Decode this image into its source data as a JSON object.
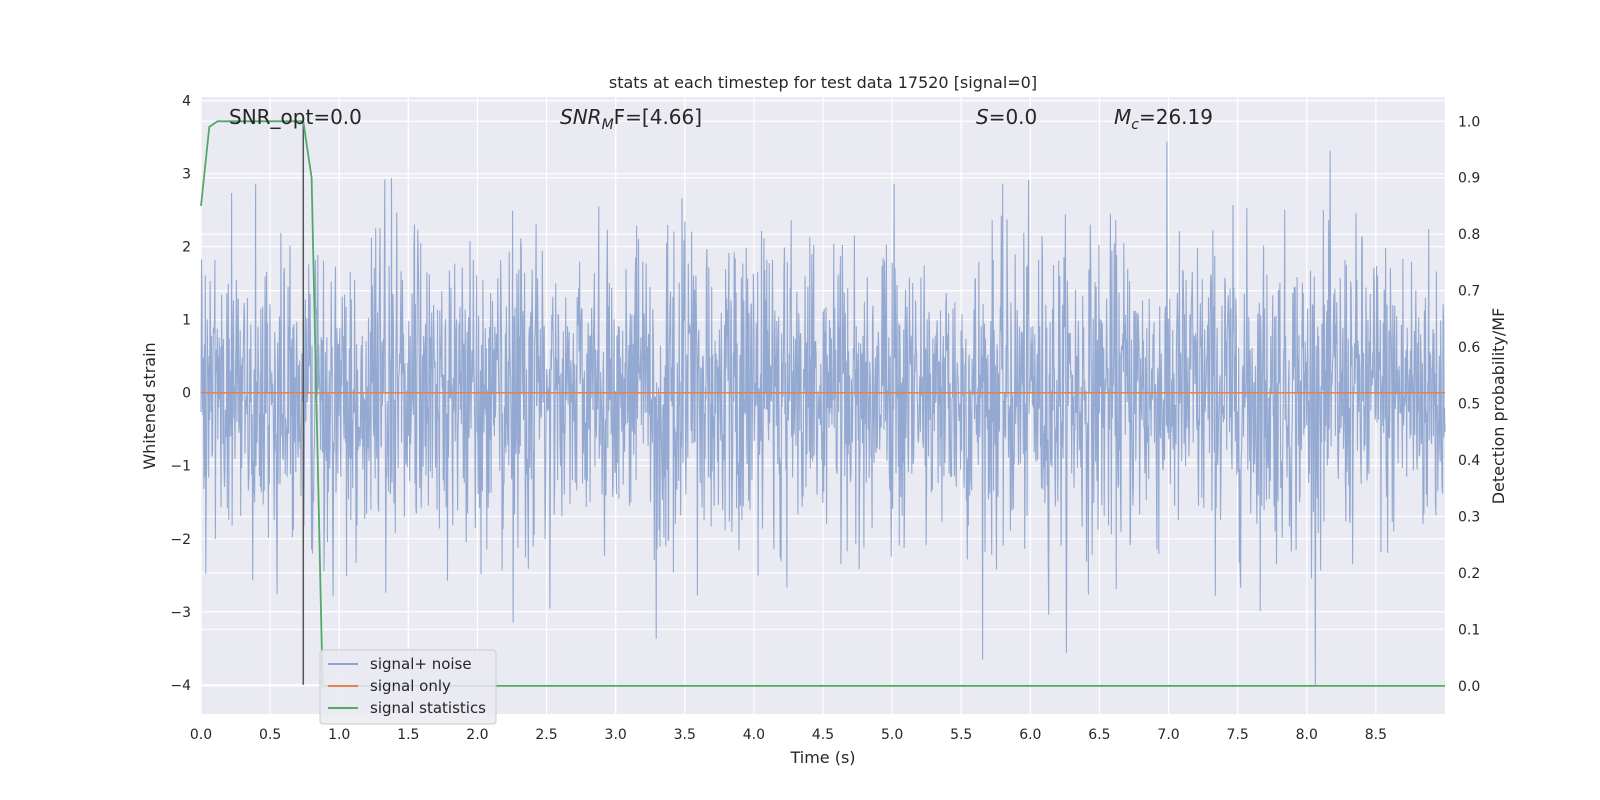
{
  "chart_data": {
    "type": "line",
    "title": "stats at each timestep for test data 17520 [signal=0]",
    "xlabel": "Time (s)",
    "ylabel": "Whitened strain",
    "ylabel_right": "Detection probability/MF",
    "xlim": [
      0.0,
      9.0
    ],
    "ylim": [
      -4.4,
      4.05
    ],
    "ylim_right": [
      -0.05,
      1.043
    ],
    "x_ticks": [
      "0.0",
      "0.5",
      "1.0",
      "1.5",
      "2.0",
      "2.5",
      "3.0",
      "3.5",
      "4.0",
      "4.5",
      "5.0",
      "5.5",
      "6.0",
      "6.5",
      "7.0",
      "7.5",
      "8.0",
      "8.5"
    ],
    "x_tick_values": [
      0.0,
      0.5,
      1.0,
      1.5,
      2.0,
      2.5,
      3.0,
      3.5,
      4.0,
      4.5,
      5.0,
      5.5,
      6.0,
      6.5,
      7.0,
      7.5,
      8.0,
      8.5
    ],
    "y_ticks": [
      "4",
      "3",
      "2",
      "1",
      "0",
      "−1",
      "−2",
      "−3",
      "−4"
    ],
    "y_tick_values": [
      4,
      3,
      2,
      1,
      0,
      -1,
      -2,
      -3,
      -4
    ],
    "y_ticks_right": [
      "1.0",
      "0.9",
      "0.8",
      "0.7",
      "0.6",
      "0.5",
      "0.4",
      "0.3",
      "0.2",
      "0.1",
      "0.0"
    ],
    "y_tick_values_right": [
      1.0,
      0.9,
      0.8,
      0.7,
      0.6,
      0.5,
      0.4,
      0.3,
      0.2,
      0.1,
      0.0
    ],
    "grid": true,
    "legend_position": "lower-left",
    "annotations": {
      "snr_opt": "SNR_opt=0.0",
      "snr_mf_main": "SNR",
      "snr_mf_sub": "M",
      "snr_mf_rest": "F=[4.66]",
      "s_main": "S",
      "s_rest": "=0.0",
      "mc_main": "M",
      "mc_sub": "c",
      "mc_rest": "=26.19"
    },
    "series": [
      {
        "name": "signal+ noise",
        "color": "#8fa5cf",
        "noise_std": 1.0,
        "peak_max": 3.65,
        "peak_min": -4.0
      },
      {
        "name": "signal only",
        "color": "#dd8452",
        "constant_value": 0.0
      },
      {
        "name": "signal statistics",
        "color": "#55a868",
        "axis": "right",
        "x": [
          0.0,
          0.06,
          0.12,
          0.2,
          0.3,
          0.4,
          0.5,
          0.6,
          0.7,
          0.74,
          0.8,
          0.88,
          1.0,
          2.0,
          3.0,
          3.6,
          4.0,
          5.0,
          6.0,
          7.0,
          8.0,
          9.0
        ],
        "values": [
          0.85,
          0.99,
          1.0,
          1.0,
          1.0,
          1.0,
          1.0,
          1.0,
          1.0,
          1.0,
          0.9,
          0.0,
          0.0,
          0.0,
          0.0,
          0.0,
          0.0,
          0.0,
          0.0,
          0.0,
          0.0,
          0.0
        ]
      }
    ],
    "marker_line": {
      "x": 0.74,
      "y_from": -4.0,
      "y_to": 3.7,
      "color": "#555555"
    },
    "colors": {
      "plot_background": "#eaeaf2",
      "grid": "#ffffff",
      "text": "#262626"
    }
  }
}
